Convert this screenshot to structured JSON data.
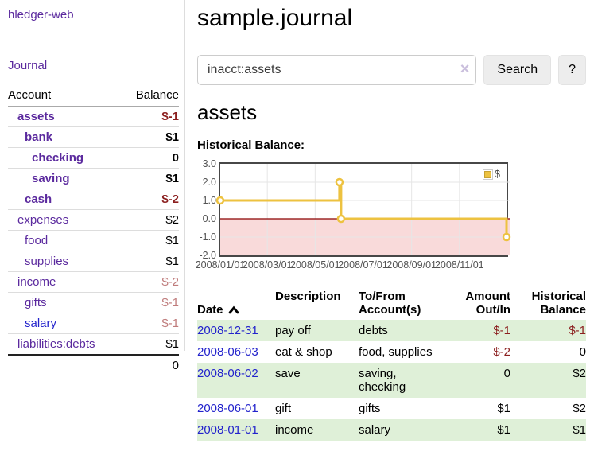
{
  "colors": {
    "purple": "#5b2a9e",
    "blue": "#2323cc",
    "neg_strong": "#8b1f1f",
    "neg_muted": "#bf7b7b",
    "row_green": "#dff0d8",
    "chart_line": "#edc240",
    "chart_negative_region": "#f9dada",
    "chart_zero_line": "#8b0000",
    "chart_grid": "#e6e6e6"
  },
  "sidebar": {
    "brand": "hledger-web",
    "journal_link": "Journal",
    "accounts_table": {
      "header_account": "Account",
      "header_balance": "Balance",
      "rows": [
        {
          "name": "assets",
          "balance": "$-1"
        },
        {
          "name": "bank",
          "balance": "$1"
        },
        {
          "name": "checking",
          "balance": "0"
        },
        {
          "name": "saving",
          "balance": "$1"
        },
        {
          "name": "cash",
          "balance": "$-2"
        },
        {
          "name": "expenses",
          "balance": "$2"
        },
        {
          "name": "food",
          "balance": "$1"
        },
        {
          "name": "supplies",
          "balance": "$1"
        },
        {
          "name": "income",
          "balance": "$-2"
        },
        {
          "name": "gifts",
          "balance": "$-1"
        },
        {
          "name": "salary",
          "balance": "$-1"
        },
        {
          "name": "liabilities:debts",
          "balance": "$1"
        }
      ],
      "total": "0"
    }
  },
  "main": {
    "title": "sample.journal",
    "search": {
      "value": "inacct:assets",
      "clear_icon": "×",
      "button_label": "Search",
      "help_label": "?"
    },
    "account_heading": "assets",
    "chart_title": "Historical Balance:"
  },
  "chart_data": {
    "type": "line",
    "style": "step",
    "title": "Historical Balance:",
    "series": [
      {
        "name": "$",
        "points": [
          [
            "2008-01-01",
            1
          ],
          [
            "2008-06-01",
            2
          ],
          [
            "2008-06-03",
            0
          ],
          [
            "2008-12-31",
            -1
          ]
        ]
      }
    ],
    "xlim": [
      "2008-01-01",
      "2008-12-31"
    ],
    "ylim": [
      -2,
      3
    ],
    "yticks": [
      {
        "v": 3,
        "label": "3.0"
      },
      {
        "v": 2,
        "label": "2.0"
      },
      {
        "v": 1,
        "label": "1.0"
      },
      {
        "v": 0,
        "label": "0.0"
      },
      {
        "v": -1,
        "label": "-1.0"
      },
      {
        "v": -2,
        "label": "-2.0"
      }
    ],
    "xticks": [
      {
        "date": "2008-01-01",
        "label": "2008/01/01"
      },
      {
        "date": "2008-03-01",
        "label": "2008/03/01"
      },
      {
        "date": "2008-05-01",
        "label": "2008/05/01"
      },
      {
        "date": "2008-07-01",
        "label": "2008/07/01"
      },
      {
        "date": "2008-09-01",
        "label": "2008/09/01"
      },
      {
        "date": "2008-11-01",
        "label": "2008/11/01"
      }
    ],
    "legend": {
      "label": "$",
      "position": "top-right"
    },
    "grid": true,
    "negative_region_below": 0
  },
  "register_table": {
    "headers": {
      "date": "Date",
      "description": "Description",
      "accounts": "To/From\nAccount(s)",
      "amount": "Amount\nOut/In",
      "balance": "Historical\nBalance"
    },
    "rows": [
      {
        "date": "2008-12-31",
        "description": "pay off",
        "accounts": "debts",
        "amount": "$-1",
        "balance": "$-1"
      },
      {
        "date": "2008-06-03",
        "description": "eat & shop",
        "accounts": "food, supplies",
        "amount": "$-2",
        "balance": "0"
      },
      {
        "date": "2008-06-02",
        "description": "save",
        "accounts": "saving,\nchecking",
        "amount": "0",
        "balance": "$2"
      },
      {
        "date": "2008-06-01",
        "description": "gift",
        "accounts": "gifts",
        "amount": "$1",
        "balance": "$2"
      },
      {
        "date": "2008-01-01",
        "description": "income",
        "accounts": "salary",
        "amount": "$1",
        "balance": "$1"
      }
    ]
  }
}
